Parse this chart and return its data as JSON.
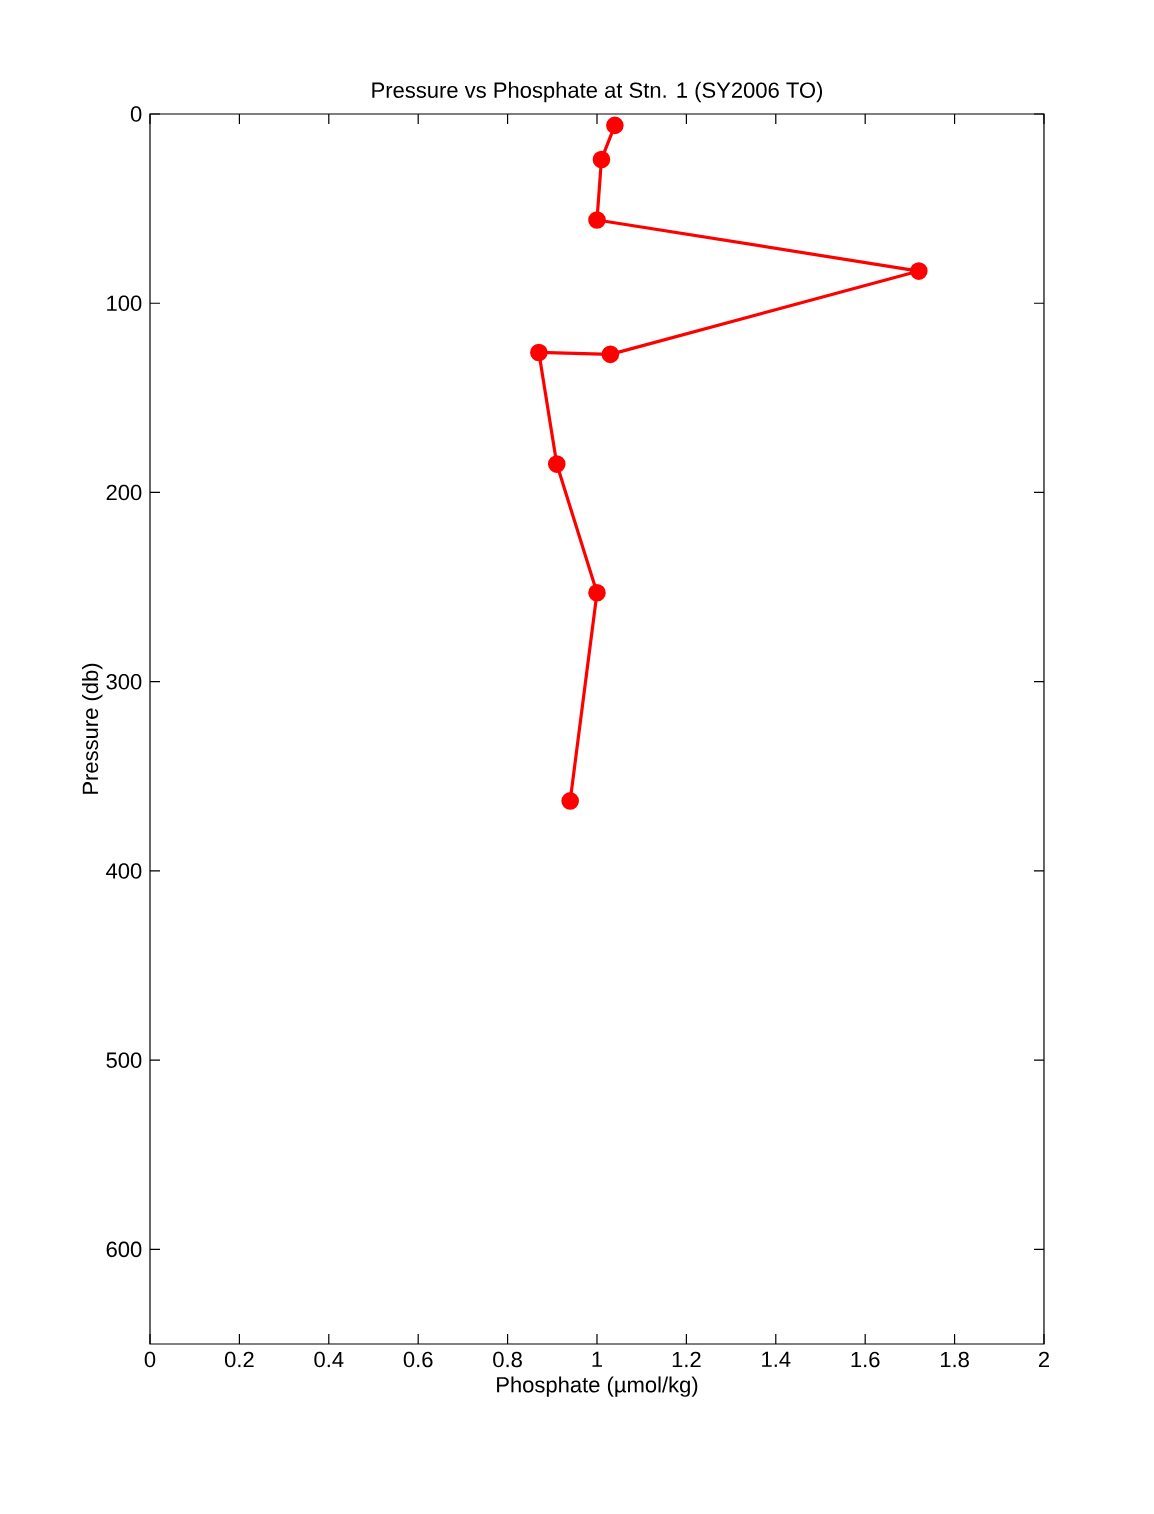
{
  "chart_data": {
    "type": "line",
    "title": "Pressure vs Phosphate at Stn. 1 (SY2006 TO)",
    "xlabel": "Phosphate (µmol/kg)",
    "ylabel": "Pressure (db)",
    "xlim": [
      0,
      2
    ],
    "ylim": [
      650,
      0
    ],
    "xticks": [
      0,
      0.2,
      0.4,
      0.6,
      0.8,
      1,
      1.2,
      1.4,
      1.6,
      1.8,
      2
    ],
    "yticks": [
      0,
      100,
      200,
      300,
      400,
      500,
      600
    ],
    "series": [
      {
        "color": "#ff0000",
        "x": [
          1.04,
          1.01,
          1.0,
          1.72,
          1.03,
          0.87,
          0.91,
          1.0,
          0.94
        ],
        "values": [
          6,
          24,
          56,
          83,
          127,
          126,
          185,
          253,
          363
        ]
      }
    ],
    "marker": "circle",
    "line_style": "solid"
  }
}
